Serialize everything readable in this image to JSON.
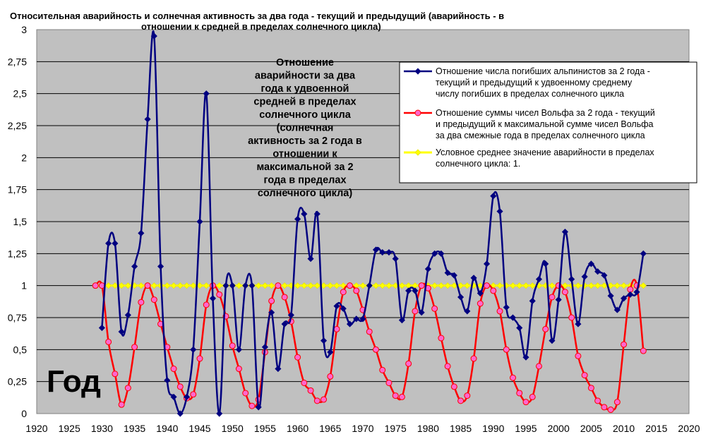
{
  "chart_data": {
    "type": "line",
    "title": "Относительная аварийность и солнечная активность за два года - текущий и предыдущий (аварийность - в отношении к средней в пределах солнечного цикла)",
    "title_lines": [
      "Относительная аварийность и солнечная активность за два года - текущий и предыдущий (аварийность - в",
      "отношении к средней в пределах солнечного цикла)"
    ],
    "xlabel": "Год",
    "ylabel": "",
    "xlim": [
      1920,
      2020
    ],
    "ylim": [
      0,
      3
    ],
    "x_ticks": [
      "1920",
      "1925",
      "1930",
      "1935",
      "1940",
      "1945",
      "1950",
      "1955",
      "1960",
      "1965",
      "1970",
      "1975",
      "1980",
      "1985",
      "1990",
      "1995",
      "2000",
      "2005",
      "2010",
      "2015",
      "2020"
    ],
    "y_ticks": [
      "0",
      "0,25",
      "0,5",
      "0,75",
      "1",
      "1,25",
      "1,5",
      "1,75",
      "2",
      "2,25",
      "2,5",
      "2,75",
      "3"
    ],
    "grid": true,
    "legend_position": "top-right",
    "annotation_lines": [
      "Отношение",
      "аварийности  за два",
      "года к удвоенной",
      "средней  в пределах",
      "солнечного цикла",
      "(солнечная",
      "активность за 2 года в",
      "отношении к",
      "максимальной за 2",
      "года в пределах",
      "солнечного цикла)"
    ],
    "series": [
      {
        "name_lines": [
          "Отношение числа погибших альпинистов за 2 года -",
          "текущий и предыдущий к удвоенному среднему",
          "числу погибших в пределах солнечного цикла"
        ],
        "color": "#000080",
        "marker": "diamond",
        "x": [
          1930,
          1931,
          1932,
          1933,
          1934,
          1935,
          1936,
          1937,
          1938,
          1939,
          1940,
          1941,
          1942,
          1943,
          1944,
          1945,
          1946,
          1947,
          1948,
          1949,
          1950,
          1951,
          1952,
          1953,
          1954,
          1955,
          1956,
          1957,
          1958,
          1959,
          1960,
          1961,
          1962,
          1963,
          1964,
          1965,
          1966,
          1967,
          1968,
          1969,
          1970,
          1971,
          1972,
          1973,
          1974,
          1975,
          1976,
          1977,
          1978,
          1979,
          1980,
          1981,
          1982,
          1983,
          1984,
          1985,
          1986,
          1987,
          1988,
          1989,
          1990,
          1991,
          1992,
          1993,
          1994,
          1995,
          1996,
          1997,
          1998,
          1999,
          2000,
          2001,
          2002,
          2003,
          2004,
          2005,
          2006,
          2007,
          2008,
          2009,
          2010,
          2011,
          2012,
          2013
        ],
        "y": [
          0.67,
          1.33,
          1.33,
          0.64,
          0.77,
          1.15,
          1.41,
          2.3,
          2.95,
          1.15,
          0.26,
          0.13,
          0.0,
          0.13,
          0.5,
          1.5,
          2.5,
          0.9,
          0.0,
          1.0,
          1.0,
          0.5,
          1.0,
          1.0,
          0.05,
          0.52,
          0.79,
          0.35,
          0.7,
          0.77,
          1.52,
          1.56,
          1.21,
          1.56,
          0.57,
          0.48,
          0.84,
          0.82,
          0.7,
          0.74,
          0.74,
          1.0,
          1.28,
          1.26,
          1.26,
          1.21,
          0.73,
          0.96,
          0.96,
          0.79,
          1.13,
          1.25,
          1.25,
          1.1,
          1.08,
          0.91,
          0.8,
          1.06,
          0.94,
          1.17,
          1.7,
          1.58,
          0.83,
          0.75,
          0.67,
          0.44,
          0.88,
          1.05,
          1.17,
          0.57,
          0.89,
          1.42,
          1.05,
          0.7,
          1.07,
          1.17,
          1.11,
          1.08,
          0.92,
          0.81,
          0.9,
          0.93,
          0.95,
          1.25
        ]
      },
      {
        "name_lines": [
          "Отношение суммы чисел Вольфа за 2 года - текущий",
          "и предыдущий к максимальной сумме чисел Вольфа",
          "за два смежные года в пределах солнечного цикла"
        ],
        "color": "#ff0000",
        "marker": "circle",
        "marker_fill": "#ff66cc",
        "x": [
          1929,
          1930,
          1931,
          1932,
          1933,
          1934,
          1935,
          1936,
          1937,
          1938,
          1939,
          1940,
          1941,
          1942,
          1943,
          1944,
          1945,
          1946,
          1947,
          1948,
          1949,
          1950,
          1951,
          1952,
          1953,
          1954,
          1955,
          1956,
          1957,
          1958,
          1959,
          1960,
          1961,
          1962,
          1963,
          1964,
          1965,
          1966,
          1967,
          1968,
          1969,
          1970,
          1971,
          1972,
          1973,
          1974,
          1975,
          1976,
          1977,
          1978,
          1979,
          1980,
          1981,
          1982,
          1983,
          1984,
          1985,
          1986,
          1987,
          1988,
          1989,
          1990,
          1991,
          1992,
          1993,
          1994,
          1995,
          1996,
          1997,
          1998,
          1999,
          2000,
          2001,
          2002,
          2003,
          2004,
          2005,
          2006,
          2007,
          2008,
          2009,
          2010,
          2011,
          2012,
          2013
        ],
        "y": [
          1.0,
          1.0,
          0.56,
          0.31,
          0.07,
          0.2,
          0.52,
          0.87,
          1.0,
          0.89,
          0.7,
          0.52,
          0.35,
          0.21,
          0.12,
          0.15,
          0.43,
          0.85,
          1.0,
          0.93,
          0.76,
          0.53,
          0.35,
          0.16,
          0.06,
          0.11,
          0.48,
          0.88,
          1.0,
          0.91,
          0.72,
          0.44,
          0.24,
          0.18,
          0.1,
          0.11,
          0.29,
          0.66,
          0.95,
          1.0,
          0.96,
          0.81,
          0.64,
          0.5,
          0.34,
          0.24,
          0.14,
          0.13,
          0.39,
          0.8,
          1.0,
          0.98,
          0.82,
          0.59,
          0.37,
          0.21,
          0.1,
          0.14,
          0.43,
          0.86,
          1.0,
          0.96,
          0.8,
          0.5,
          0.28,
          0.16,
          0.09,
          0.13,
          0.37,
          0.66,
          0.91,
          1.0,
          0.95,
          0.75,
          0.45,
          0.3,
          0.2,
          0.1,
          0.05,
          0.03,
          0.09,
          0.54,
          0.97,
          1.0,
          0.49
        ]
      },
      {
        "name_lines": [
          "Условное среднее значение аварийности в пределах",
          "солнечного цикла: 1."
        ],
        "color": "#ffff00",
        "marker": "diamond",
        "x": [
          1929,
          1930,
          1931,
          1932,
          1933,
          1934,
          1935,
          1936,
          1937,
          1938,
          1939,
          1940,
          1941,
          1942,
          1943,
          1944,
          1945,
          1946,
          1947,
          1948,
          1949,
          1950,
          1951,
          1952,
          1953,
          1954,
          1955,
          1956,
          1957,
          1958,
          1959,
          1960,
          1961,
          1962,
          1963,
          1964,
          1965,
          1966,
          1967,
          1968,
          1969,
          1970,
          1971,
          1972,
          1973,
          1974,
          1975,
          1976,
          1977,
          1978,
          1979,
          1980,
          1981,
          1982,
          1983,
          1984,
          1985,
          1986,
          1987,
          1988,
          1989,
          1990,
          1991,
          1992,
          1993,
          1994,
          1995,
          1996,
          1997,
          1998,
          1999,
          2000,
          2001,
          2002,
          2003,
          2004,
          2005,
          2006,
          2007,
          2008,
          2009,
          2010,
          2011,
          2012,
          2013
        ],
        "constant_y": 1
      }
    ]
  }
}
